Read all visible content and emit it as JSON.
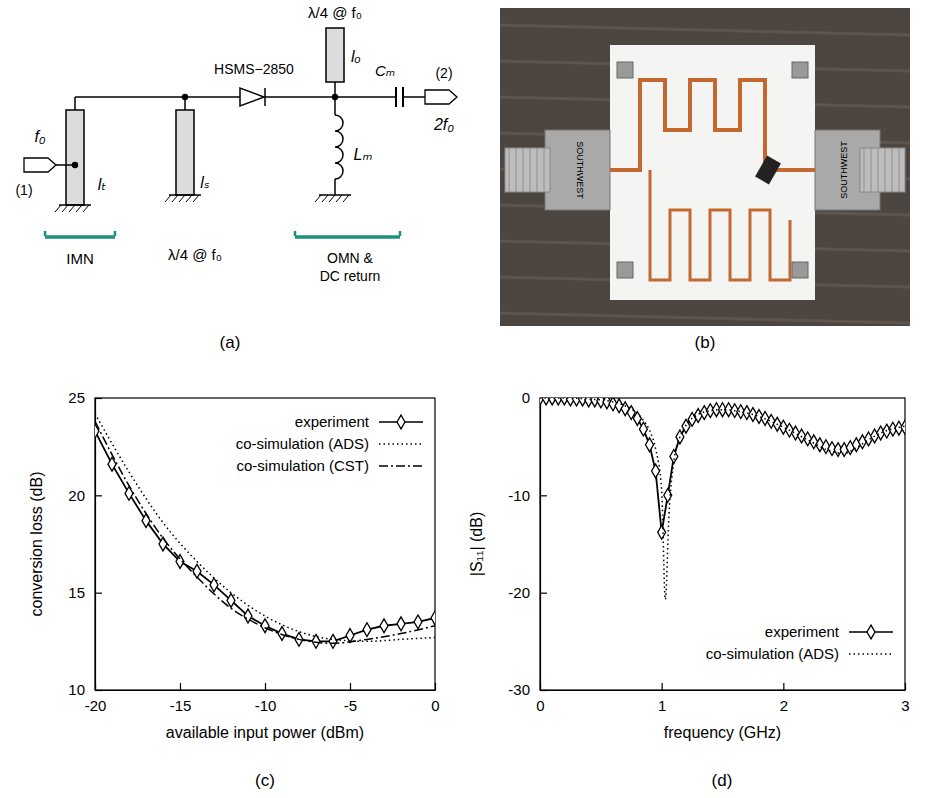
{
  "panels": [
    "(a)",
    "(b)",
    "(c)",
    "(d)"
  ],
  "diagram": {
    "labels": {
      "input_frequency": "f₀",
      "input_port": "(1)",
      "lt": "lₜ",
      "imn": "IMN",
      "stub_note": "λ/4 @ f₀",
      "ls": "lₛ",
      "diode": "HSMS−2850",
      "open_note": "λ/4 @ f₀",
      "lo": "lₒ",
      "cm": "Cₘ",
      "output_port": "(2)",
      "output_frequency": "2f₀",
      "lm": "Lₘ",
      "omn": [
        "OMN &",
        "DC return"
      ]
    }
  },
  "photo": {
    "labels": [
      "SOUTHWEST",
      "SOUTHWEST"
    ]
  },
  "chart_data": [
    {
      "type": "line",
      "x_label": "available input power (dBm)",
      "y_label": "conversion loss (dB)",
      "xlim": [
        -20,
        0
      ],
      "xticks": [
        -20,
        -15,
        -10,
        -5,
        0
      ],
      "ylim": [
        10,
        25
      ],
      "yticks": [
        10,
        15,
        20,
        25
      ],
      "legend": "top-right",
      "series": [
        {
          "name": "experiment",
          "color": "#000000",
          "line_style": "solid",
          "marker": "diamond",
          "x": [
            -20,
            -19,
            -18,
            -17,
            -16,
            -15,
            -14,
            -13,
            -12,
            -11,
            -10,
            -9,
            -8,
            -7,
            -6,
            -5,
            -4,
            -3,
            -2,
            -1,
            0
          ],
          "values": [
            23.3,
            21.6,
            20.1,
            18.7,
            17.5,
            16.6,
            16.1,
            15.4,
            14.6,
            13.8,
            13.3,
            12.9,
            12.6,
            12.5,
            12.5,
            12.8,
            13.1,
            13.3,
            13.4,
            13.5,
            13.7
          ]
        },
        {
          "name": "co-simulation (ADS)",
          "color": "#000000",
          "line_style": "dotted",
          "x": [
            -20,
            -18,
            -16,
            -14,
            -12,
            -10,
            -8,
            -6,
            -4,
            -2,
            0
          ],
          "values": [
            24.2,
            21.2,
            18.6,
            16.6,
            15.0,
            13.8,
            13.0,
            12.6,
            12.5,
            12.6,
            12.7
          ]
        },
        {
          "name": "co-simulation (CST)",
          "color": "#000000",
          "line_style": "dashdot",
          "x": [
            -20,
            -18,
            -16,
            -14,
            -12,
            -10,
            -8,
            -6,
            -4,
            -2,
            0
          ],
          "values": [
            23.8,
            20.5,
            17.8,
            15.8,
            14.2,
            13.2,
            12.6,
            12.4,
            12.6,
            12.9,
            13.3
          ]
        }
      ]
    },
    {
      "type": "line",
      "x_label": "frequency  (GHz)",
      "y_label": "|S₁₁|  (dB)",
      "xlim": [
        0,
        3
      ],
      "xticks": [
        0,
        1,
        2,
        3
      ],
      "ylim": [
        -30,
        0
      ],
      "yticks": [
        -30,
        -20,
        -10,
        0
      ],
      "legend": "bottom-right",
      "series": [
        {
          "name": "experiment",
          "color": "#000000",
          "line_style": "solid",
          "marker": "diamond",
          "x": [
            0,
            0.05,
            0.1,
            0.15,
            0.2,
            0.25,
            0.3,
            0.35,
            0.4,
            0.45,
            0.5,
            0.55,
            0.6,
            0.65,
            0.7,
            0.75,
            0.8,
            0.85,
            0.9,
            0.95,
            1.0,
            1.05,
            1.1,
            1.15,
            1.2,
            1.25,
            1.3,
            1.35,
            1.4,
            1.45,
            1.5,
            1.55,
            1.6,
            1.65,
            1.7,
            1.75,
            1.8,
            1.85,
            1.9,
            1.95,
            2.0,
            2.05,
            2.1,
            2.15,
            2.2,
            2.25,
            2.3,
            2.35,
            2.4,
            2.45,
            2.5,
            2.55,
            2.6,
            2.65,
            2.7,
            2.75,
            2.8,
            2.85,
            2.9,
            2.95,
            3.0
          ],
          "values": [
            0,
            0,
            0,
            0,
            0,
            -0.1,
            -0.1,
            -0.1,
            -0.2,
            -0.2,
            -0.3,
            -0.4,
            -0.6,
            -0.8,
            -1.1,
            -1.5,
            -2.1,
            -3.2,
            -4.8,
            -7.5,
            -13.8,
            -10.0,
            -6.0,
            -4.0,
            -2.9,
            -2.2,
            -1.8,
            -1.5,
            -1.3,
            -1.2,
            -1.2,
            -1.2,
            -1.3,
            -1.4,
            -1.5,
            -1.7,
            -1.9,
            -2.1,
            -2.4,
            -2.7,
            -3.0,
            -3.3,
            -3.6,
            -3.9,
            -4.2,
            -4.5,
            -4.8,
            -5.0,
            -5.2,
            -5.3,
            -5.3,
            -5.1,
            -4.8,
            -4.5,
            -4.2,
            -3.9,
            -3.6,
            -3.4,
            -3.2,
            -3.1,
            -3.0
          ]
        },
        {
          "name": "co-simulation (ADS)",
          "color": "#000000",
          "line_style": "dotted",
          "x": [
            0,
            0.2,
            0.4,
            0.6,
            0.7,
            0.8,
            0.85,
            0.9,
            0.95,
            1.0,
            1.03,
            1.06,
            1.1,
            1.15,
            1.2,
            1.3,
            1.4,
            1.5,
            1.6,
            1.8,
            2.0,
            2.2,
            2.4,
            2.5,
            2.6,
            2.7,
            2.8,
            3.0
          ],
          "values": [
            0,
            0,
            -0.1,
            -0.4,
            -0.8,
            -1.6,
            -2.3,
            -3.3,
            -5.2,
            -9.5,
            -20.7,
            -12.0,
            -6.5,
            -4.0,
            -2.8,
            -1.7,
            -1.3,
            -1.2,
            -1.3,
            -1.9,
            -3.0,
            -4.3,
            -5.5,
            -5.7,
            -5.1,
            -4.3,
            -3.6,
            -2.9
          ]
        }
      ]
    }
  ]
}
